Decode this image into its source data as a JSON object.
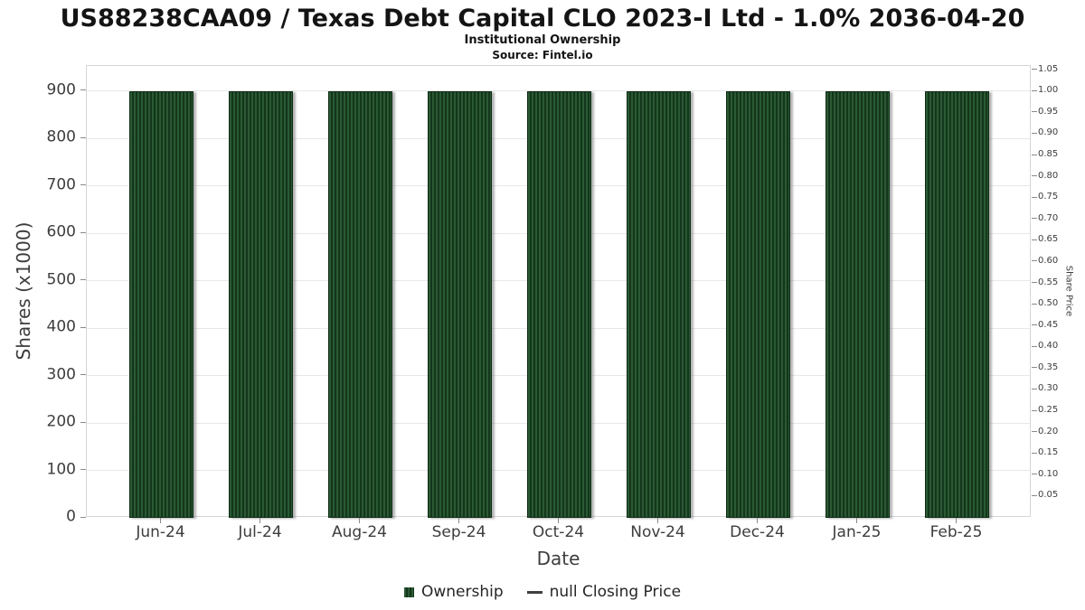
{
  "chart_data": {
    "type": "bar",
    "title": "US88238CAA09 / Texas Debt Capital CLO 2023-I Ltd - 1.0% 2036-04-20",
    "subtitle": "Institutional Ownership",
    "source": "Source: Fintel.io",
    "xlabel": "Date",
    "ylabel_left": "Shares (x1000)",
    "ylabel_right": "Share Price",
    "categories": [
      "Jun-24",
      "Jul-24",
      "Aug-24",
      "Sep-24",
      "Oct-24",
      "Nov-24",
      "Dec-24",
      "Jan-25",
      "Feb-25"
    ],
    "series": [
      {
        "name": "Ownership",
        "values": [
          900,
          900,
          900,
          900,
          900,
          900,
          900,
          900,
          900
        ]
      },
      {
        "name": "Closing Price",
        "values": null
      }
    ],
    "bar_color": "#2a5a33",
    "bar_hatch_color": "#14361c",
    "bar_edge_color": "#0e2a15",
    "yticks_left": [
      0,
      100,
      200,
      300,
      400,
      500,
      600,
      700,
      800,
      900
    ],
    "ylim_left": [
      0,
      953
    ],
    "yticks_right": [
      "1.05",
      "1.00",
      "0.95",
      "0.90",
      "0.85",
      "0.80",
      "0.75",
      "0.70",
      "0.65",
      "0.60",
      "0.55",
      "0.50",
      "0.45",
      "0.40",
      "0.35",
      "0.30",
      "0.25",
      "0.20",
      "0.15",
      "0.10",
      "0.05"
    ],
    "ylim_right": [
      0,
      1.06
    ],
    "xlim": [
      -0.75,
      8.75
    ],
    "bar_width": 0.65,
    "grid": true,
    "legend": [
      {
        "label": "Ownership",
        "marker": "square"
      },
      {
        "label": "null Closing Price",
        "marker": "line",
        "color": "#3f3f3f"
      }
    ]
  }
}
